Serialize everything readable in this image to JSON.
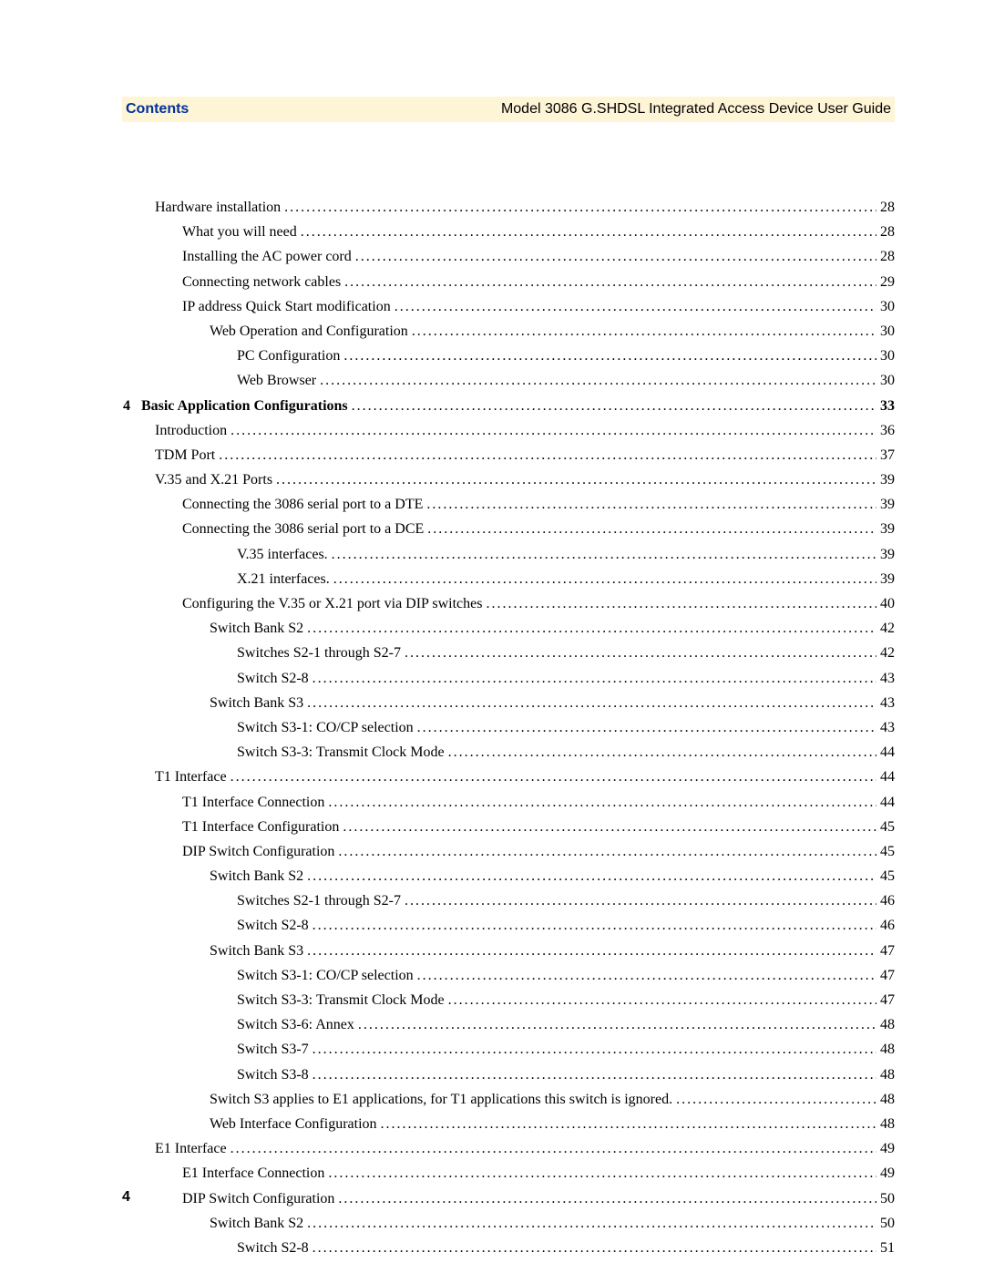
{
  "header": {
    "left": "Contents",
    "right": "Model 3086 G.SHDSL Integrated Access Device User Guide"
  },
  "toc": [
    {
      "indent": 1,
      "text": "Hardware installation",
      "page": "28"
    },
    {
      "indent": 2,
      "text": "What you will need",
      "page": "28"
    },
    {
      "indent": 2,
      "text": "Installing the AC power cord",
      "page": "28"
    },
    {
      "indent": 2,
      "text": "Connecting network cables",
      "page": "29"
    },
    {
      "indent": 2,
      "text": "IP address Quick Start modification",
      "page": "30"
    },
    {
      "indent": 3,
      "text": "Web Operation and Configuration",
      "page": "30"
    },
    {
      "indent": 4,
      "text": "PC Configuration",
      "page": "30"
    },
    {
      "indent": 4,
      "text": "Web Browser",
      "page": "30"
    },
    {
      "indent": 0,
      "chapter": "4",
      "text": "Basic Application Configurations",
      "page": " 33",
      "bold": true
    },
    {
      "indent": 1,
      "text": "Introduction",
      "page": "36"
    },
    {
      "indent": 1,
      "text": "TDM Port",
      "page": "37"
    },
    {
      "indent": 1,
      "text": "V.35 and X.21 Ports",
      "page": "39"
    },
    {
      "indent": 2,
      "text": "Connecting the 3086 serial port to a DTE",
      "page": "39"
    },
    {
      "indent": 2,
      "text": "Connecting the 3086 serial port to a DCE",
      "page": "39"
    },
    {
      "indent": 4,
      "text": "V.35 interfaces.",
      "page": "39"
    },
    {
      "indent": 4,
      "text": "X.21 interfaces.",
      "page": "39"
    },
    {
      "indent": 2,
      "text": "Configuring the V.35 or X.21 port via DIP switches",
      "page": "40"
    },
    {
      "indent": 3,
      "text": "Switch Bank S2",
      "page": "42"
    },
    {
      "indent": 4,
      "text": "Switches S2-1 through S2-7",
      "page": "42"
    },
    {
      "indent": 4,
      "text": "Switch S2-8",
      "page": "43"
    },
    {
      "indent": 3,
      "text": "Switch Bank S3",
      "page": "43"
    },
    {
      "indent": 4,
      "text": "Switch S3-1: CO/CP selection",
      "page": "43"
    },
    {
      "indent": 4,
      "text": "Switch S3-3: Transmit Clock Mode",
      "page": "44"
    },
    {
      "indent": 1,
      "text": "T1 Interface",
      "page": "44"
    },
    {
      "indent": 2,
      "text": "T1 Interface Connection",
      "page": "44"
    },
    {
      "indent": 2,
      "text": "T1 Interface Configuration",
      "page": "45"
    },
    {
      "indent": 2,
      "text": "DIP Switch Configuration",
      "page": "45"
    },
    {
      "indent": 3,
      "text": "Switch Bank S2",
      "page": "45"
    },
    {
      "indent": 4,
      "text": "Switches S2-1 through S2-7",
      "page": "46"
    },
    {
      "indent": 4,
      "text": "Switch S2-8",
      "page": "46"
    },
    {
      "indent": 3,
      "text": "Switch Bank S3",
      "page": "47"
    },
    {
      "indent": 4,
      "text": "Switch S3-1: CO/CP selection",
      "page": "47"
    },
    {
      "indent": 4,
      "text": "Switch S3-3: Transmit Clock Mode",
      "page": "47"
    },
    {
      "indent": 4,
      "text": "Switch S3-6: Annex",
      "page": "48"
    },
    {
      "indent": 4,
      "text": "Switch S3-7",
      "page": "48"
    },
    {
      "indent": 4,
      "text": "Switch S3-8",
      "page": "48"
    },
    {
      "indent": 3,
      "text": "Switch S3 applies to E1 applications, for T1 applications this switch is ignored.",
      "page": "48"
    },
    {
      "indent": 3,
      "text": "Web Interface Configuration",
      "page": "48"
    },
    {
      "indent": 1,
      "text": "E1 Interface",
      "page": "49"
    },
    {
      "indent": 2,
      "text": "E1 Interface Connection",
      "page": "49"
    },
    {
      "indent": 2,
      "text": "DIP Switch Configuration",
      "page": "50"
    },
    {
      "indent": 3,
      "text": "Switch Bank S2",
      "page": "50"
    },
    {
      "indent": 4,
      "text": "Switch S2-8",
      "page": "51"
    }
  ],
  "pageNumber": "4"
}
